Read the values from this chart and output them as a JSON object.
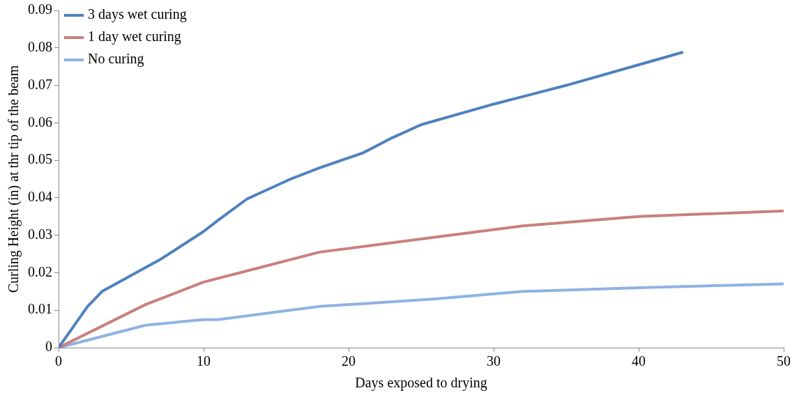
{
  "chart_data": {
    "type": "line",
    "xlabel": "Days exposed to drying",
    "ylabel": "Curling Height (in) at thr tip of the beam",
    "xlim": [
      0,
      50
    ],
    "xticks": [
      0,
      10,
      20,
      30,
      40,
      50
    ],
    "ylim": [
      0,
      0.09
    ],
    "yticks": [
      0,
      0.01,
      0.02,
      0.03,
      0.04,
      0.05,
      0.06,
      0.07,
      0.08,
      0.09
    ],
    "grid": false,
    "legend": "top left",
    "marker": "none",
    "line_style": "solid",
    "series": [
      {
        "name": "3 days wet curing",
        "color": "#4f81bd",
        "x": [
          0,
          2,
          3,
          7,
          10,
          11,
          13,
          16,
          18,
          21,
          23,
          25,
          30,
          35,
          40,
          43
        ],
        "values": [
          0,
          0.011,
          0.015,
          0.0235,
          0.031,
          0.034,
          0.0397,
          0.045,
          0.048,
          0.052,
          0.056,
          0.0595,
          0.065,
          0.07,
          0.0755,
          0.0788
        ]
      },
      {
        "name": "1 day wet curing",
        "color": "#c9807d",
        "x": [
          0,
          6,
          10,
          13,
          18,
          25,
          32,
          40,
          50
        ],
        "values": [
          0,
          0.0115,
          0.0175,
          0.0205,
          0.0255,
          0.029,
          0.0325,
          0.035,
          0.0365
        ]
      },
      {
        "name": "No curing",
        "color": "#8db3e2",
        "x": [
          0,
          2,
          6,
          10,
          11,
          18,
          26,
          32,
          40,
          50
        ],
        "values": [
          0,
          0.002,
          0.006,
          0.0075,
          0.0075,
          0.011,
          0.013,
          0.015,
          0.016,
          0.017
        ]
      }
    ]
  }
}
